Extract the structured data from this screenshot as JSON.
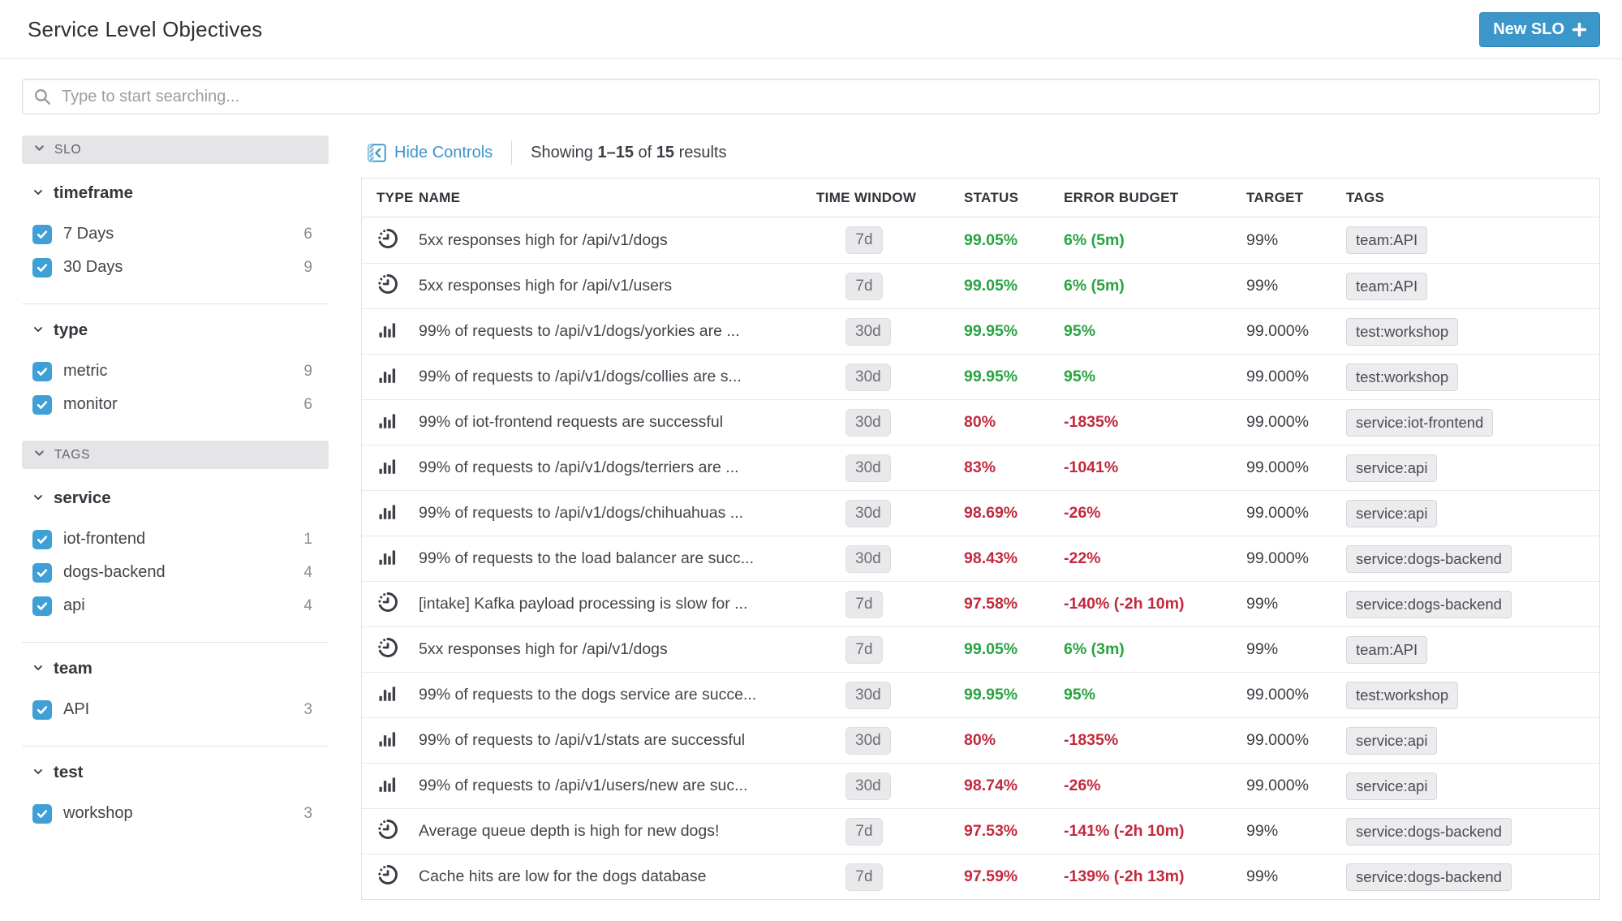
{
  "header": {
    "title": "Service Level Objectives",
    "new_slo_label": "New SLO"
  },
  "search": {
    "placeholder": "Type to start searching..."
  },
  "colors": {
    "accent": "#3b96c9",
    "ok": "#27a342",
    "alert": "#c2293d",
    "checkbox": "#3fa0d8"
  },
  "sidebar": {
    "sections": [
      {
        "header": "SLO",
        "facets": [
          {
            "label": "timeframe",
            "items": [
              {
                "label": "7 Days",
                "count": "6",
                "checked": true
              },
              {
                "label": "30 Days",
                "count": "9",
                "checked": true
              }
            ]
          },
          {
            "label": "type",
            "items": [
              {
                "label": "metric",
                "count": "9",
                "checked": true
              },
              {
                "label": "monitor",
                "count": "6",
                "checked": true
              }
            ]
          }
        ]
      },
      {
        "header": "TAGS",
        "facets": [
          {
            "label": "service",
            "items": [
              {
                "label": "iot-frontend",
                "count": "1",
                "checked": true
              },
              {
                "label": "dogs-backend",
                "count": "4",
                "checked": true
              },
              {
                "label": "api",
                "count": "4",
                "checked": true
              }
            ]
          },
          {
            "label": "team",
            "items": [
              {
                "label": "API",
                "count": "3",
                "checked": true
              }
            ]
          },
          {
            "label": "test",
            "items": [
              {
                "label": "workshop",
                "count": "3",
                "checked": true
              }
            ]
          }
        ]
      }
    ]
  },
  "controls": {
    "hide_controls_label": "Hide Controls",
    "showing": {
      "prefix": "Showing",
      "range": "1–15",
      "middle": "of",
      "total": "15",
      "suffix": "results"
    }
  },
  "table": {
    "columns": [
      "TYPE",
      "NAME",
      "TIME WINDOW",
      "STATUS",
      "ERROR BUDGET",
      "TARGET",
      "TAGS"
    ],
    "rows": [
      {
        "type": "monitor",
        "name": "5xx responses high for /api/v1/dogs",
        "window": "7d",
        "status": "99.05%",
        "status_state": "ok",
        "budget": "6% (5m)",
        "budget_state": "ok",
        "target": "99%",
        "tag": "team:API"
      },
      {
        "type": "monitor",
        "name": "5xx responses high for /api/v1/users",
        "window": "7d",
        "status": "99.05%",
        "status_state": "ok",
        "budget": "6% (5m)",
        "budget_state": "ok",
        "target": "99%",
        "tag": "team:API"
      },
      {
        "type": "metric",
        "name": "99% of requests to /api/v1/dogs/yorkies are ...",
        "window": "30d",
        "status": "99.95%",
        "status_state": "ok",
        "budget": "95%",
        "budget_state": "ok",
        "target": "99.000%",
        "tag": "test:workshop"
      },
      {
        "type": "metric",
        "name": "99% of requests to /api/v1/dogs/collies are s...",
        "window": "30d",
        "status": "99.95%",
        "status_state": "ok",
        "budget": "95%",
        "budget_state": "ok",
        "target": "99.000%",
        "tag": "test:workshop"
      },
      {
        "type": "metric",
        "name": "99% of iot-frontend requests are successful",
        "window": "30d",
        "status": "80%",
        "status_state": "alert",
        "budget": "-1835%",
        "budget_state": "alert",
        "target": "99.000%",
        "tag": "service:iot-frontend"
      },
      {
        "type": "metric",
        "name": "99% of requests to /api/v1/dogs/terriers are ...",
        "window": "30d",
        "status": "83%",
        "status_state": "alert",
        "budget": "-1041%",
        "budget_state": "alert",
        "target": "99.000%",
        "tag": "service:api"
      },
      {
        "type": "metric",
        "name": "99% of requests to /api/v1/dogs/chihuahuas ...",
        "window": "30d",
        "status": "98.69%",
        "status_state": "alert",
        "budget": "-26%",
        "budget_state": "alert",
        "target": "99.000%",
        "tag": "service:api"
      },
      {
        "type": "metric",
        "name": "99% of requests to the load balancer are succ...",
        "window": "30d",
        "status": "98.43%",
        "status_state": "alert",
        "budget": "-22%",
        "budget_state": "alert",
        "target": "99.000%",
        "tag": "service:dogs-backend"
      },
      {
        "type": "monitor",
        "name": "[intake] Kafka payload processing is slow for ...",
        "window": "7d",
        "status": "97.58%",
        "status_state": "alert",
        "budget": "-140% (-2h 10m)",
        "budget_state": "alert",
        "target": "99%",
        "tag": "service:dogs-backend"
      },
      {
        "type": "monitor",
        "name": "5xx responses high for /api/v1/dogs",
        "window": "7d",
        "status": "99.05%",
        "status_state": "ok",
        "budget": "6% (3m)",
        "budget_state": "ok",
        "target": "99%",
        "tag": "team:API"
      },
      {
        "type": "metric",
        "name": "99% of requests to the dogs service are succe...",
        "window": "30d",
        "status": "99.95%",
        "status_state": "ok",
        "budget": "95%",
        "budget_state": "ok",
        "target": "99.000%",
        "tag": "test:workshop"
      },
      {
        "type": "metric",
        "name": "99% of requests to /api/v1/stats are successful",
        "window": "30d",
        "status": "80%",
        "status_state": "alert",
        "budget": "-1835%",
        "budget_state": "alert",
        "target": "99.000%",
        "tag": "service:api"
      },
      {
        "type": "metric",
        "name": "99% of requests to /api/v1/users/new are suc...",
        "window": "30d",
        "status": "98.74%",
        "status_state": "alert",
        "budget": "-26%",
        "budget_state": "alert",
        "target": "99.000%",
        "tag": "service:api"
      },
      {
        "type": "monitor",
        "name": "Average queue depth is high for new dogs!",
        "window": "7d",
        "status": "97.53%",
        "status_state": "alert",
        "budget": "-141% (-2h 10m)",
        "budget_state": "alert",
        "target": "99%",
        "tag": "service:dogs-backend"
      },
      {
        "type": "monitor",
        "name": "Cache hits are low for the dogs database",
        "window": "7d",
        "status": "97.59%",
        "status_state": "alert",
        "budget": "-139% (-2h 13m)",
        "budget_state": "alert",
        "target": "99%",
        "tag": "service:dogs-backend"
      }
    ]
  }
}
